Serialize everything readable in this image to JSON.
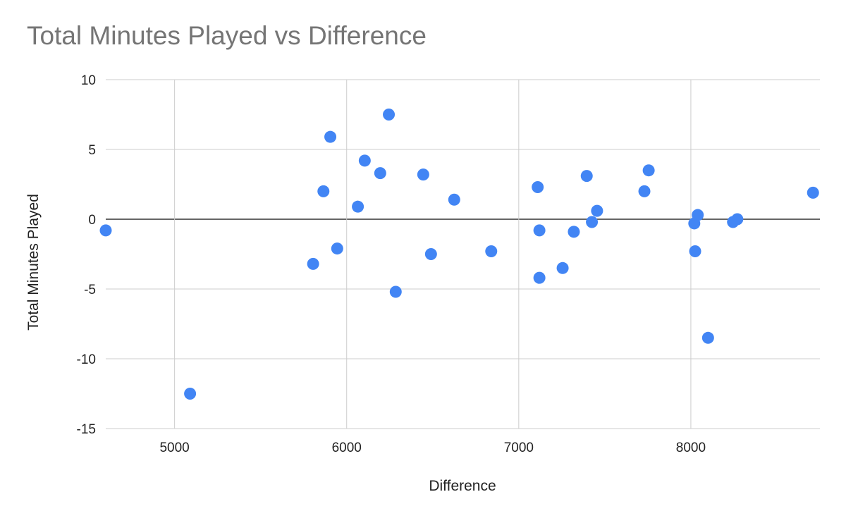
{
  "chart_data": {
    "type": "scatter",
    "title": "Total Minutes Played vs Difference",
    "xlabel": "Difference",
    "ylabel": "Total Minutes Played",
    "xlim": [
      4600,
      8750
    ],
    "ylim": [
      -15,
      10
    ],
    "xticks": [
      5000,
      6000,
      7000,
      8000
    ],
    "yticks": [
      10,
      5,
      0,
      -5,
      -10,
      -15
    ],
    "grid": true,
    "legend": "none",
    "point_color": "#4285f4",
    "series": [
      {
        "points": [
          [
            4600,
            -0.8
          ],
          [
            5090,
            -12.5
          ],
          [
            5805,
            -3.2
          ],
          [
            5865,
            2.0
          ],
          [
            5905,
            5.9
          ],
          [
            5945,
            -2.1
          ],
          [
            6065,
            0.9
          ],
          [
            6105,
            4.2
          ],
          [
            6195,
            3.3
          ],
          [
            6245,
            7.5
          ],
          [
            6285,
            -5.2
          ],
          [
            6445,
            3.2
          ],
          [
            6490,
            -2.5
          ],
          [
            6625,
            1.4
          ],
          [
            6840,
            -2.3
          ],
          [
            7110,
            2.3
          ],
          [
            7120,
            -0.8
          ],
          [
            7120,
            -4.2
          ],
          [
            7255,
            -3.5
          ],
          [
            7320,
            -0.9
          ],
          [
            7395,
            3.1
          ],
          [
            7425,
            -0.2
          ],
          [
            7455,
            0.6
          ],
          [
            7730,
            2.0
          ],
          [
            7755,
            3.5
          ],
          [
            8020,
            -0.3
          ],
          [
            8025,
            -2.3
          ],
          [
            8040,
            0.3
          ],
          [
            8100,
            -8.5
          ],
          [
            8245,
            -0.2
          ],
          [
            8270,
            0.0
          ],
          [
            8710,
            1.9
          ]
        ]
      }
    ]
  }
}
